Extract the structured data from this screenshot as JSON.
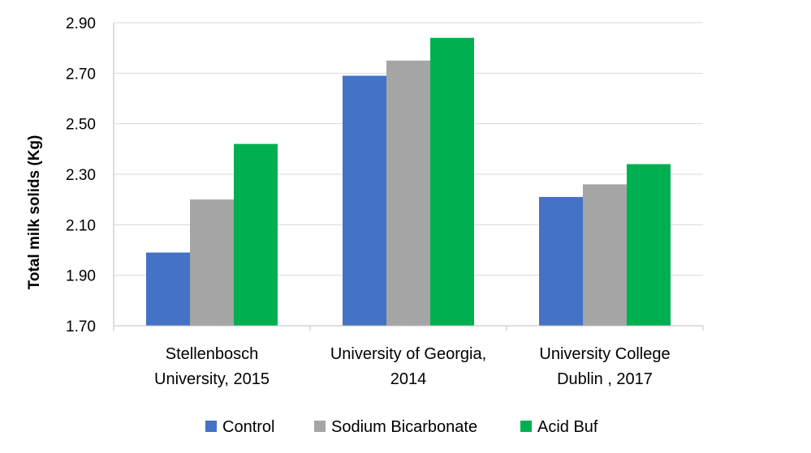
{
  "chart_data": {
    "type": "bar",
    "categories": [
      [
        "Stellenbosch",
        "University, 2015"
      ],
      [
        "University of Georgia,",
        "2014"
      ],
      [
        "University College",
        "Dublin , 2017"
      ]
    ],
    "series": [
      {
        "name": "Control",
        "color": "#4472c4",
        "values": [
          1.99,
          2.69,
          2.21
        ]
      },
      {
        "name": "Sodium Bicarbonate",
        "color": "#a5a5a5",
        "values": [
          2.2,
          2.75,
          2.26
        ]
      },
      {
        "name": "Acid Buf",
        "color": "#00b050",
        "values": [
          2.42,
          2.84,
          2.34
        ]
      }
    ],
    "ylabel": "Total milk solids (Kg)",
    "xlabel": "",
    "title": "",
    "ylim": [
      1.7,
      2.9
    ],
    "yticks": [
      "1.70",
      "1.90",
      "2.10",
      "2.30",
      "2.50",
      "2.70",
      "2.90"
    ],
    "grid": true,
    "legend_position": "bottom",
    "gridline_color": "#d9d9d9",
    "axis_color": "#bfbfbf"
  }
}
